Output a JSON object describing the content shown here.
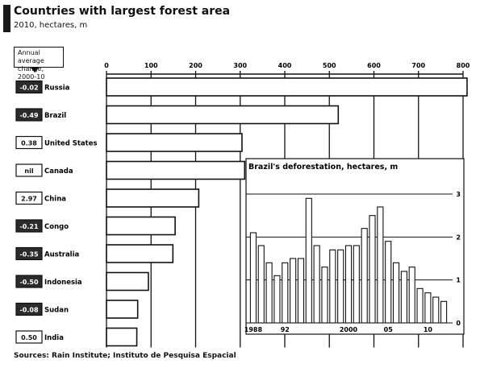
{
  "header": {
    "title": "Countries with largest forest area",
    "subtitle": "2010, hectares, m"
  },
  "legend": {
    "label": "Annual average change, 2000-10"
  },
  "source": "Sources: Rain Institute; Instituto de Pesquisa Espacial",
  "chart_data": [
    {
      "type": "bar",
      "orientation": "horizontal",
      "title": "Countries with largest forest area",
      "subtitle": "2010, hectares, m",
      "x_ticks": [
        "0",
        "100",
        "200",
        "300",
        "400",
        "500",
        "600",
        "700",
        "800"
      ],
      "xlim": [
        0,
        800
      ],
      "categories": [
        "Russia",
        "Brazil",
        "United States",
        "Canada",
        "China",
        "Congo",
        "Australia",
        "Indonesia",
        "Sudan",
        "India"
      ],
      "values": [
        809,
        520,
        304,
        310,
        207,
        154,
        149,
        94,
        70,
        68
      ],
      "change_labels": [
        "-0.02",
        "-0.49",
        "0.38",
        "nil",
        "2.97",
        "-0.21",
        "-0.35",
        "-0.50",
        "-0.08",
        "0.50"
      ],
      "change_values": [
        -0.02,
        -0.49,
        0.38,
        0.0,
        2.97,
        -0.21,
        -0.35,
        -0.5,
        -0.08,
        0.5
      ],
      "colors": {
        "bar_fill": "#ffffff",
        "bar_stroke": "#111111",
        "negative_box": "#2b2b2b",
        "positive_box": "#ffffff"
      }
    },
    {
      "type": "bar",
      "title": "Brazil's deforestation, hectares, m",
      "x_tick_labels": [
        "1988",
        "92",
        "2000",
        "05",
        "10"
      ],
      "y_ticks": [
        "0",
        "1",
        "2",
        "3"
      ],
      "ylim": [
        0,
        3
      ],
      "x": [
        1988,
        1989,
        1990,
        1991,
        1992,
        1993,
        1994,
        1995,
        1996,
        1997,
        1998,
        1999,
        2000,
        2001,
        2002,
        2003,
        2004,
        2005,
        2006,
        2007,
        2008,
        2009,
        2010,
        2011,
        2012
      ],
      "values": [
        2.1,
        1.8,
        1.4,
        1.1,
        1.4,
        1.5,
        1.5,
        2.9,
        1.8,
        1.3,
        1.7,
        1.7,
        1.8,
        1.8,
        2.2,
        2.5,
        2.7,
        1.9,
        1.4,
        1.2,
        1.3,
        0.8,
        0.7,
        0.6,
        0.5
      ]
    }
  ]
}
